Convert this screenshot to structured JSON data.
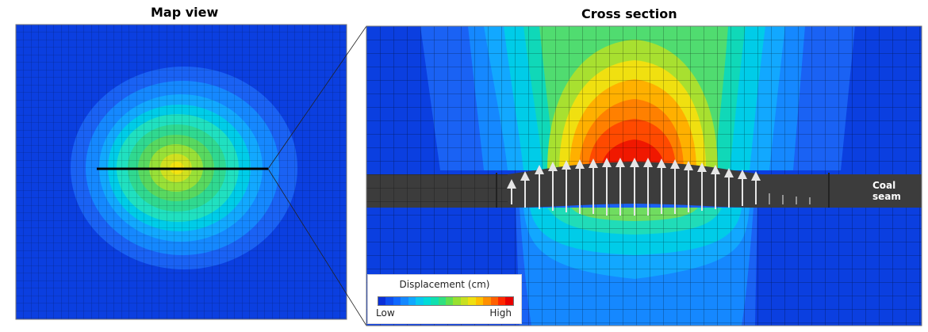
{
  "map_view": {
    "title": "Map view"
  },
  "cross_section": {
    "title": "Cross section",
    "coal_label": "Coal\nseam"
  },
  "legend": {
    "title": "Displacement (cm)",
    "low": "Low",
    "high": "High",
    "colors": [
      "#0a2fd8",
      "#0e4ef0",
      "#1068ff",
      "#1488ff",
      "#10a8ff",
      "#08c8f0",
      "#00dcd8",
      "#10e0b0",
      "#30e080",
      "#60e050",
      "#98e030",
      "#c8e020",
      "#f0e010",
      "#ffc000",
      "#ff9000",
      "#ff6000",
      "#ff2800",
      "#e80000"
    ]
  },
  "colors": {
    "background_blue": "#0b3fe0",
    "seam": "#3c3c3c",
    "arrow": "#e6e6e6"
  }
}
